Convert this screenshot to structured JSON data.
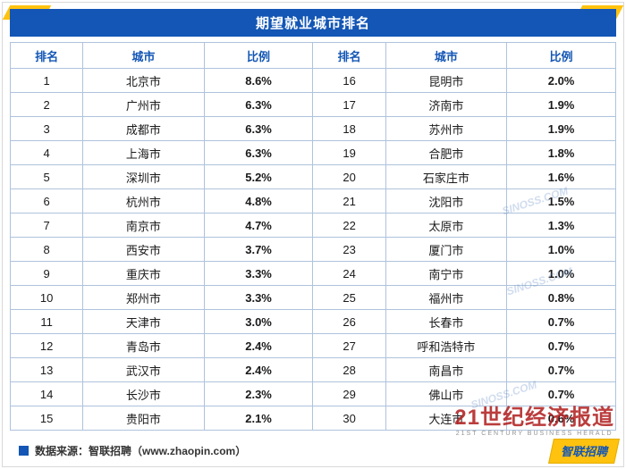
{
  "header": {
    "title": "期望就业城市排名"
  },
  "chart_data": {
    "type": "table",
    "title": "期望就业城市排名",
    "columns": [
      "排名",
      "城市",
      "比例",
      "排名",
      "城市",
      "比例"
    ],
    "rows": [
      [
        "1",
        "北京市",
        "8.6%",
        "16",
        "昆明市",
        "2.0%"
      ],
      [
        "2",
        "广州市",
        "6.3%",
        "17",
        "济南市",
        "1.9%"
      ],
      [
        "3",
        "成都市",
        "6.3%",
        "18",
        "苏州市",
        "1.9%"
      ],
      [
        "4",
        "上海市",
        "6.3%",
        "19",
        "合肥市",
        "1.8%"
      ],
      [
        "5",
        "深圳市",
        "5.2%",
        "20",
        "石家庄市",
        "1.6%"
      ],
      [
        "6",
        "杭州市",
        "4.8%",
        "21",
        "沈阳市",
        "1.5%"
      ],
      [
        "7",
        "南京市",
        "4.7%",
        "22",
        "太原市",
        "1.3%"
      ],
      [
        "8",
        "西安市",
        "3.7%",
        "23",
        "厦门市",
        "1.0%"
      ],
      [
        "9",
        "重庆市",
        "3.3%",
        "24",
        "南宁市",
        "1.0%"
      ],
      [
        "10",
        "郑州市",
        "3.3%",
        "25",
        "福州市",
        "0.8%"
      ],
      [
        "11",
        "天津市",
        "3.0%",
        "26",
        "长春市",
        "0.7%"
      ],
      [
        "12",
        "青岛市",
        "2.4%",
        "27",
        "呼和浩特市",
        "0.7%"
      ],
      [
        "13",
        "武汉市",
        "2.4%",
        "28",
        "南昌市",
        "0.7%"
      ],
      [
        "14",
        "长沙市",
        "2.3%",
        "29",
        "佛山市",
        "0.7%"
      ],
      [
        "15",
        "贵阳市",
        "2.1%",
        "30",
        "大连市",
        "0.6%"
      ]
    ]
  },
  "footer": {
    "source_label": "数据来源：智联招聘（www.zhaopin.com）"
  },
  "watermarks": {
    "brand_cn": "21世纪经济报道",
    "brand_en": "21ST CENTURY BUSINESS HERALD",
    "diagonal": "SINOSS.COM",
    "logo_text": "智联招聘"
  },
  "colors": {
    "title_bar_blue": "#1356b5",
    "accent_yellow": "#ffc20e",
    "table_border": "#aec3dc",
    "header_text_blue": "#1356b5",
    "brand_red": "#b22222"
  }
}
